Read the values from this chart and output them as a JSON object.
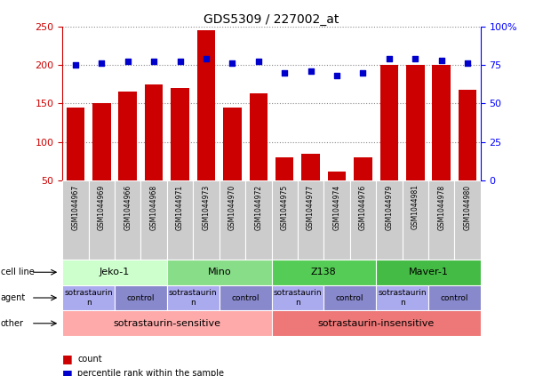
{
  "title": "GDS5309 / 227002_at",
  "samples": [
    "GSM1044967",
    "GSM1044969",
    "GSM1044966",
    "GSM1044968",
    "GSM1044971",
    "GSM1044973",
    "GSM1044970",
    "GSM1044972",
    "GSM1044975",
    "GSM1044977",
    "GSM1044974",
    "GSM1044976",
    "GSM1044979",
    "GSM1044981",
    "GSM1044978",
    "GSM1044980"
  ],
  "counts": [
    145,
    150,
    165,
    175,
    170,
    245,
    145,
    163,
    80,
    85,
    62,
    80,
    200,
    200,
    200,
    168
  ],
  "percentiles": [
    75,
    76,
    77,
    77,
    77,
    79,
    76,
    77,
    70,
    71,
    68,
    70,
    79,
    79,
    78,
    76
  ],
  "bar_color": "#cc0000",
  "dot_color": "#0000cc",
  "ylim_left": [
    50,
    250
  ],
  "ylim_right": [
    0,
    100
  ],
  "yticks_left": [
    50,
    100,
    150,
    200,
    250
  ],
  "yticks_right": [
    0,
    25,
    50,
    75,
    100
  ],
  "ytick_labels_right": [
    "0",
    "25",
    "50",
    "75",
    "100%"
  ],
  "cell_lines": [
    {
      "label": "Jeko-1",
      "start": 0,
      "end": 3,
      "color": "#ccffcc"
    },
    {
      "label": "Mino",
      "start": 4,
      "end": 7,
      "color": "#88dd88"
    },
    {
      "label": "Z138",
      "start": 8,
      "end": 11,
      "color": "#55cc55"
    },
    {
      "label": "Maver-1",
      "start": 12,
      "end": 15,
      "color": "#44bb44"
    }
  ],
  "agents": [
    {
      "label": "sotrastaurin",
      "start": 0,
      "end": 1,
      "color": "#aaaaee"
    },
    {
      "label": "control",
      "start": 2,
      "end": 3,
      "color": "#8888cc"
    },
    {
      "label": "sotrastaurin",
      "start": 4,
      "end": 5,
      "color": "#aaaaee"
    },
    {
      "label": "control",
      "start": 6,
      "end": 7,
      "color": "#8888cc"
    },
    {
      "label": "sotrastaurin",
      "start": 8,
      "end": 9,
      "color": "#aaaaee"
    },
    {
      "label": "control",
      "start": 10,
      "end": 11,
      "color": "#8888cc"
    },
    {
      "label": "sotrastaurin",
      "start": 12,
      "end": 13,
      "color": "#aaaaee"
    },
    {
      "label": "control",
      "start": 14,
      "end": 15,
      "color": "#8888cc"
    }
  ],
  "others": [
    {
      "label": "sotrastaurin-sensitive",
      "start": 0,
      "end": 7,
      "color": "#ffaaaa"
    },
    {
      "label": "sotrastaurin-insensitive",
      "start": 8,
      "end": 15,
      "color": "#ee7777"
    }
  ],
  "row_labels": [
    "cell line",
    "agent",
    "other"
  ],
  "sample_box_color": "#cccccc",
  "background_color": "#ffffff",
  "grid_color": "#888888",
  "chart_bg": "#ffffff"
}
